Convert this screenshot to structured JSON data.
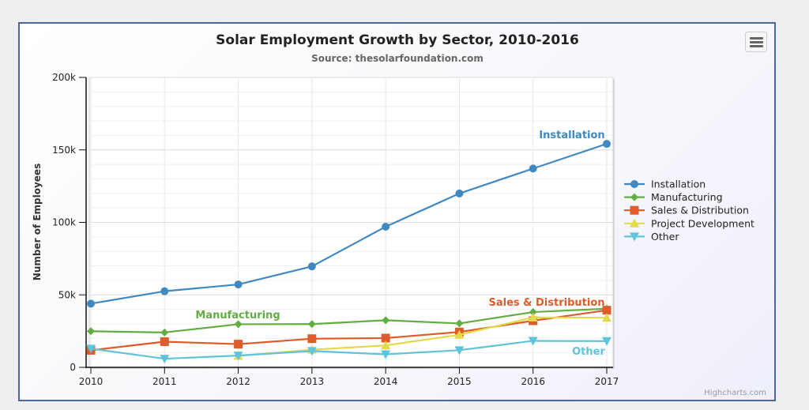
{
  "chart_data": {
    "type": "line",
    "title": "Solar Employment Growth by Sector, 2010-2016",
    "subtitle": "Source: thesolarfoundation.com",
    "xlabel": "",
    "ylabel": "Number of Employees",
    "x": [
      2010,
      2011,
      2012,
      2013,
      2014,
      2015,
      2016,
      2017
    ],
    "xlim": [
      2010,
      2017
    ],
    "ylim": [
      0,
      200000
    ],
    "yticks": [
      0,
      50000,
      100000,
      150000,
      200000
    ],
    "ytick_labels": [
      "0",
      "50k",
      "100k",
      "150k",
      "200k"
    ],
    "xtick_labels": [
      "2010",
      "2011",
      "2012",
      "2013",
      "2014",
      "2015",
      "2016",
      "2017"
    ],
    "grid": true,
    "legend_position": "right",
    "series": [
      {
        "name": "Installation",
        "color": "#3f88c0",
        "marker": "circle",
        "values": [
          43934,
          52503,
          57177,
          69658,
          97031,
          119931,
          137133,
          154175
        ]
      },
      {
        "name": "Manufacturing",
        "color": "#64ad44",
        "marker": "diamond",
        "values": [
          24916,
          24064,
          29742,
          29851,
          32490,
          30282,
          38121,
          40434
        ]
      },
      {
        "name": "Sales & Distribution",
        "color": "#de5c2c",
        "marker": "square",
        "values": [
          11744,
          17722,
          16005,
          19771,
          20185,
          24377,
          32147,
          39387
        ]
      },
      {
        "name": "Project Development",
        "color": "#e3d94a",
        "marker": "triangle",
        "values": [
          null,
          null,
          7988,
          12169,
          15112,
          22452,
          34400,
          34227
        ]
      },
      {
        "name": "Other",
        "color": "#5fc4d9",
        "marker": "triangle-down",
        "values": [
          12908,
          5948,
          8105,
          11248,
          8989,
          11816,
          18274,
          18111
        ]
      }
    ],
    "annotations": [
      {
        "text": "Installation",
        "series": "Installation"
      },
      {
        "text": "Manufacturing",
        "series": "Manufacturing"
      },
      {
        "text": "Sales & Distribution",
        "series": "Sales & Distribution"
      },
      {
        "text": "Other",
        "series": "Other"
      }
    ]
  },
  "credits": "Highcharts.com",
  "menu": {
    "icon": "hamburger-menu-icon"
  }
}
